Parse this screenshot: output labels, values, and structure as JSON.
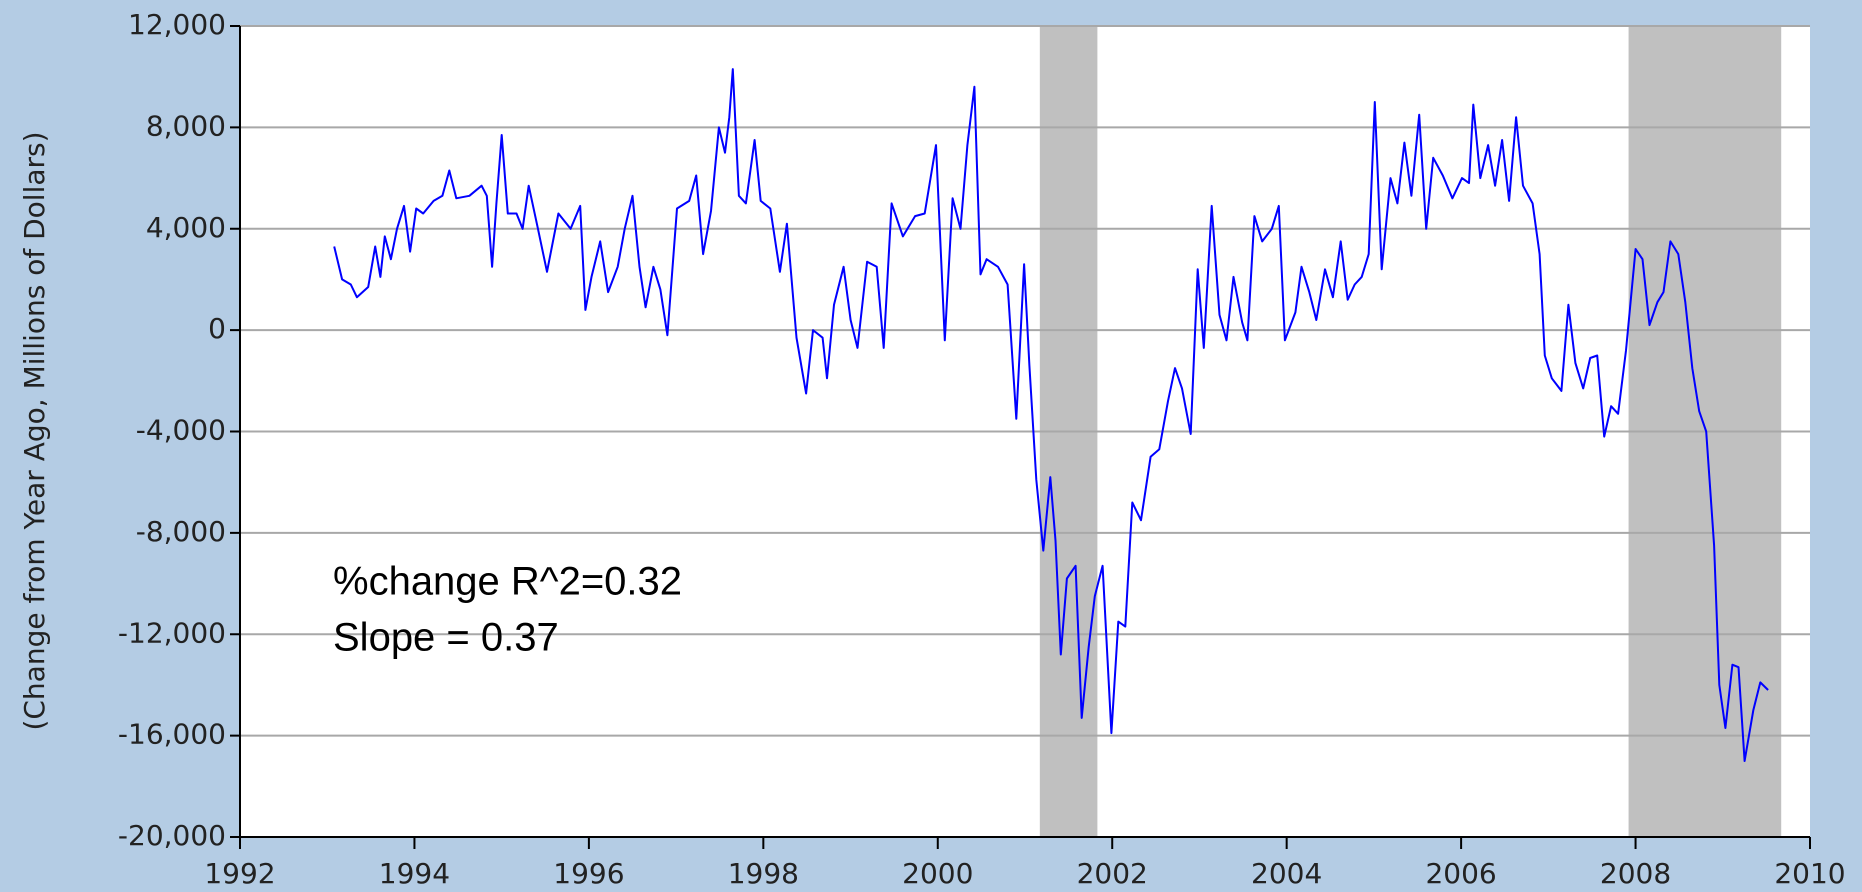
{
  "chart_data": {
    "type": "line",
    "ylabel": "(Change from Year Ago, Millions of Dollars)",
    "annotations": [
      "%change R^2=0.32",
      "Slope = 0.37"
    ],
    "shaded_ranges": [
      [
        2001.17,
        2001.83
      ],
      [
        2007.92,
        2009.67
      ]
    ],
    "shade_color": "#c0c0c0",
    "xlim": [
      1992,
      2010
    ],
    "xticks": [
      1992,
      1994,
      1996,
      1998,
      2000,
      2002,
      2004,
      2006,
      2008,
      2010
    ],
    "ylim": [
      -20000,
      12000
    ],
    "yticks": [
      {
        "value": -20000,
        "label": "-20,000"
      },
      {
        "value": -16000,
        "label": "-16,000"
      },
      {
        "value": -12000,
        "label": "-12,000"
      },
      {
        "value": -8000,
        "label": "-8,000"
      },
      {
        "value": -4000,
        "label": "-4,000"
      },
      0,
      {
        "value": 4000,
        "label": "4,000"
      },
      {
        "value": 8000,
        "label": "8,000"
      },
      {
        "value": 12000,
        "label": "12,000"
      }
    ],
    "grid": true,
    "series": [
      {
        "color": "#0000ff",
        "x": [
          1993.08,
          1993.17,
          1993.27,
          1993.34,
          1993.47,
          1993.55,
          1993.61,
          1993.66,
          1993.73,
          1993.8,
          1993.88,
          1993.95,
          1994.02,
          1994.1,
          1994.22,
          1994.32,
          1994.4,
          1994.48,
          1994.63,
          1994.77,
          1994.83,
          1994.89,
          1994.94,
          1995.0,
          1995.07,
          1995.17,
          1995.24,
          1995.31,
          1995.41,
          1995.52,
          1995.65,
          1995.79,
          1995.9,
          1995.96,
          1996.03,
          1996.13,
          1996.22,
          1996.33,
          1996.41,
          1996.5,
          1996.58,
          1996.65,
          1996.74,
          1996.82,
          1996.9,
          1997.01,
          1997.15,
          1997.23,
          1997.31,
          1997.4,
          1997.49,
          1997.56,
          1997.61,
          1997.65,
          1997.72,
          1997.8,
          1997.9,
          1997.97,
          1998.08,
          1998.19,
          1998.27,
          1998.38,
          1998.49,
          1998.57,
          1998.68,
          1998.73,
          1998.81,
          1998.92,
          1999.0,
          1999.08,
          1999.19,
          1999.3,
          1999.38,
          1999.47,
          1999.6,
          1999.74,
          1999.85,
          1999.98,
          2000.08,
          2000.17,
          2000.26,
          2000.34,
          2000.42,
          2000.49,
          2000.56,
          2000.69,
          2000.8,
          2000.9,
          2000.99,
          2001.05,
          2001.13,
          2001.21,
          2001.29,
          2001.35,
          2001.41,
          2001.48,
          2001.58,
          2001.65,
          2001.73,
          2001.8,
          2001.89,
          2001.99,
          2002.07,
          2002.15,
          2002.23,
          2002.33,
          2002.44,
          2002.54,
          2002.64,
          2002.72,
          2002.8,
          2002.9,
          2002.98,
          2003.05,
          2003.14,
          2003.23,
          2003.31,
          2003.39,
          2003.49,
          2003.55,
          2003.63,
          2003.72,
          2003.83,
          2003.91,
          2003.98,
          2004.1,
          2004.17,
          2004.26,
          2004.34,
          2004.44,
          2004.53,
          2004.62,
          2004.7,
          2004.78,
          2004.86,
          2004.94,
          2005.01,
          2005.09,
          2005.19,
          2005.27,
          2005.35,
          2005.43,
          2005.52,
          2005.6,
          2005.68,
          2005.79,
          2005.9,
          2006.01,
          2006.09,
          2006.14,
          2006.22,
          2006.31,
          2006.39,
          2006.47,
          2006.55,
          2006.63,
          2006.71,
          2006.82,
          2006.9,
          2006.96,
          2007.04,
          2007.15,
          2007.23,
          2007.31,
          2007.4,
          2007.48,
          2007.56,
          2007.64,
          2007.72,
          2007.8,
          2007.89,
          2008.0,
          2008.08,
          2008.16,
          2008.25,
          2008.32,
          2008.4,
          2008.49,
          2008.57,
          2008.65,
          2008.73,
          2008.81,
          2008.9,
          2008.96,
          2009.03,
          2009.11,
          2009.18,
          2009.25,
          2009.35,
          2009.43,
          2009.52
        ],
        "values": [
          3300,
          2000,
          1800,
          1300,
          1700,
          3300,
          2100,
          3700,
          2800,
          4000,
          4900,
          3100,
          4800,
          4600,
          5100,
          5300,
          6300,
          5200,
          5300,
          5700,
          5300,
          2500,
          5000,
          7700,
          4600,
          4600,
          4000,
          5700,
          4100,
          2300,
          4600,
          4000,
          4900,
          800,
          2100,
          3500,
          1500,
          2500,
          4000,
          5300,
          2500,
          900,
          2500,
          1600,
          -200,
          4800,
          5100,
          6100,
          3000,
          4700,
          8000,
          7000,
          8400,
          10300,
          5300,
          5000,
          7500,
          5100,
          4800,
          2300,
          4200,
          -300,
          -2500,
          0,
          -300,
          -1900,
          1000,
          2500,
          400,
          -700,
          2700,
          2500,
          -700,
          5000,
          3700,
          4500,
          4600,
          7300,
          -400,
          5200,
          4000,
          7300,
          9600,
          2200,
          2800,
          2500,
          1800,
          -3500,
          2600,
          -1400,
          -5900,
          -8700,
          -5800,
          -8300,
          -12800,
          -9800,
          -9300,
          -15300,
          -12500,
          -10500,
          -9300,
          -15900,
          -11500,
          -11700,
          -6800,
          -7500,
          -5000,
          -4700,
          -2800,
          -1500,
          -2300,
          -4100,
          2400,
          -700,
          4900,
          600,
          -400,
          2100,
          300,
          -400,
          4500,
          3500,
          4000,
          4900,
          -400,
          700,
          2500,
          1500,
          400,
          2400,
          1300,
          3500,
          1200,
          1800,
          2100,
          3000,
          9000,
          2400,
          6000,
          5000,
          7400,
          5300,
          8500,
          4000,
          6800,
          6100,
          5200,
          6000,
          5800,
          8900,
          6000,
          7300,
          5700,
          7500,
          5100,
          8400,
          5700,
          5000,
          3000,
          -1000,
          -1900,
          -2400,
          1000,
          -1300,
          -2300,
          -1100,
          -1000,
          -4200,
          -3000,
          -3300,
          -800,
          3200,
          2800,
          200,
          1100,
          1500,
          3500,
          3000,
          1100,
          -1500,
          -3200,
          -4000,
          -8500,
          -14000,
          -15700,
          -13200,
          -13300,
          -17000,
          -15000,
          -13900,
          -14200
        ]
      }
    ]
  }
}
